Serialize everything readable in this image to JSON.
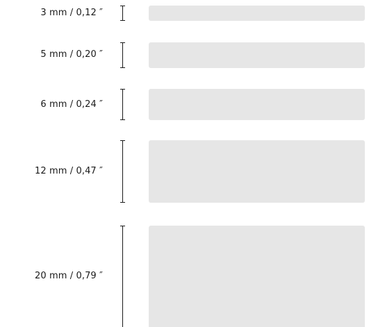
{
  "sizes": [
    {
      "label": "3 mm  /  0,12 ″",
      "mm": 3,
      "inch": "0,12"
    },
    {
      "label": "5 mm  /  0,20 ″",
      "mm": 5,
      "inch": "0,20"
    },
    {
      "label": "6 mm  /  0,24 ″",
      "mm": 6,
      "inch": "0,24"
    },
    {
      "label": "12 mm  /  0,47 ″",
      "mm": 12,
      "inch": "0,47"
    },
    {
      "label": "20 mm  /  0,79 ″",
      "mm": 20,
      "inch": "0,79"
    }
  ],
  "colors": {
    "swatch": "#e6e6e6",
    "text": "#1a1a1a"
  }
}
